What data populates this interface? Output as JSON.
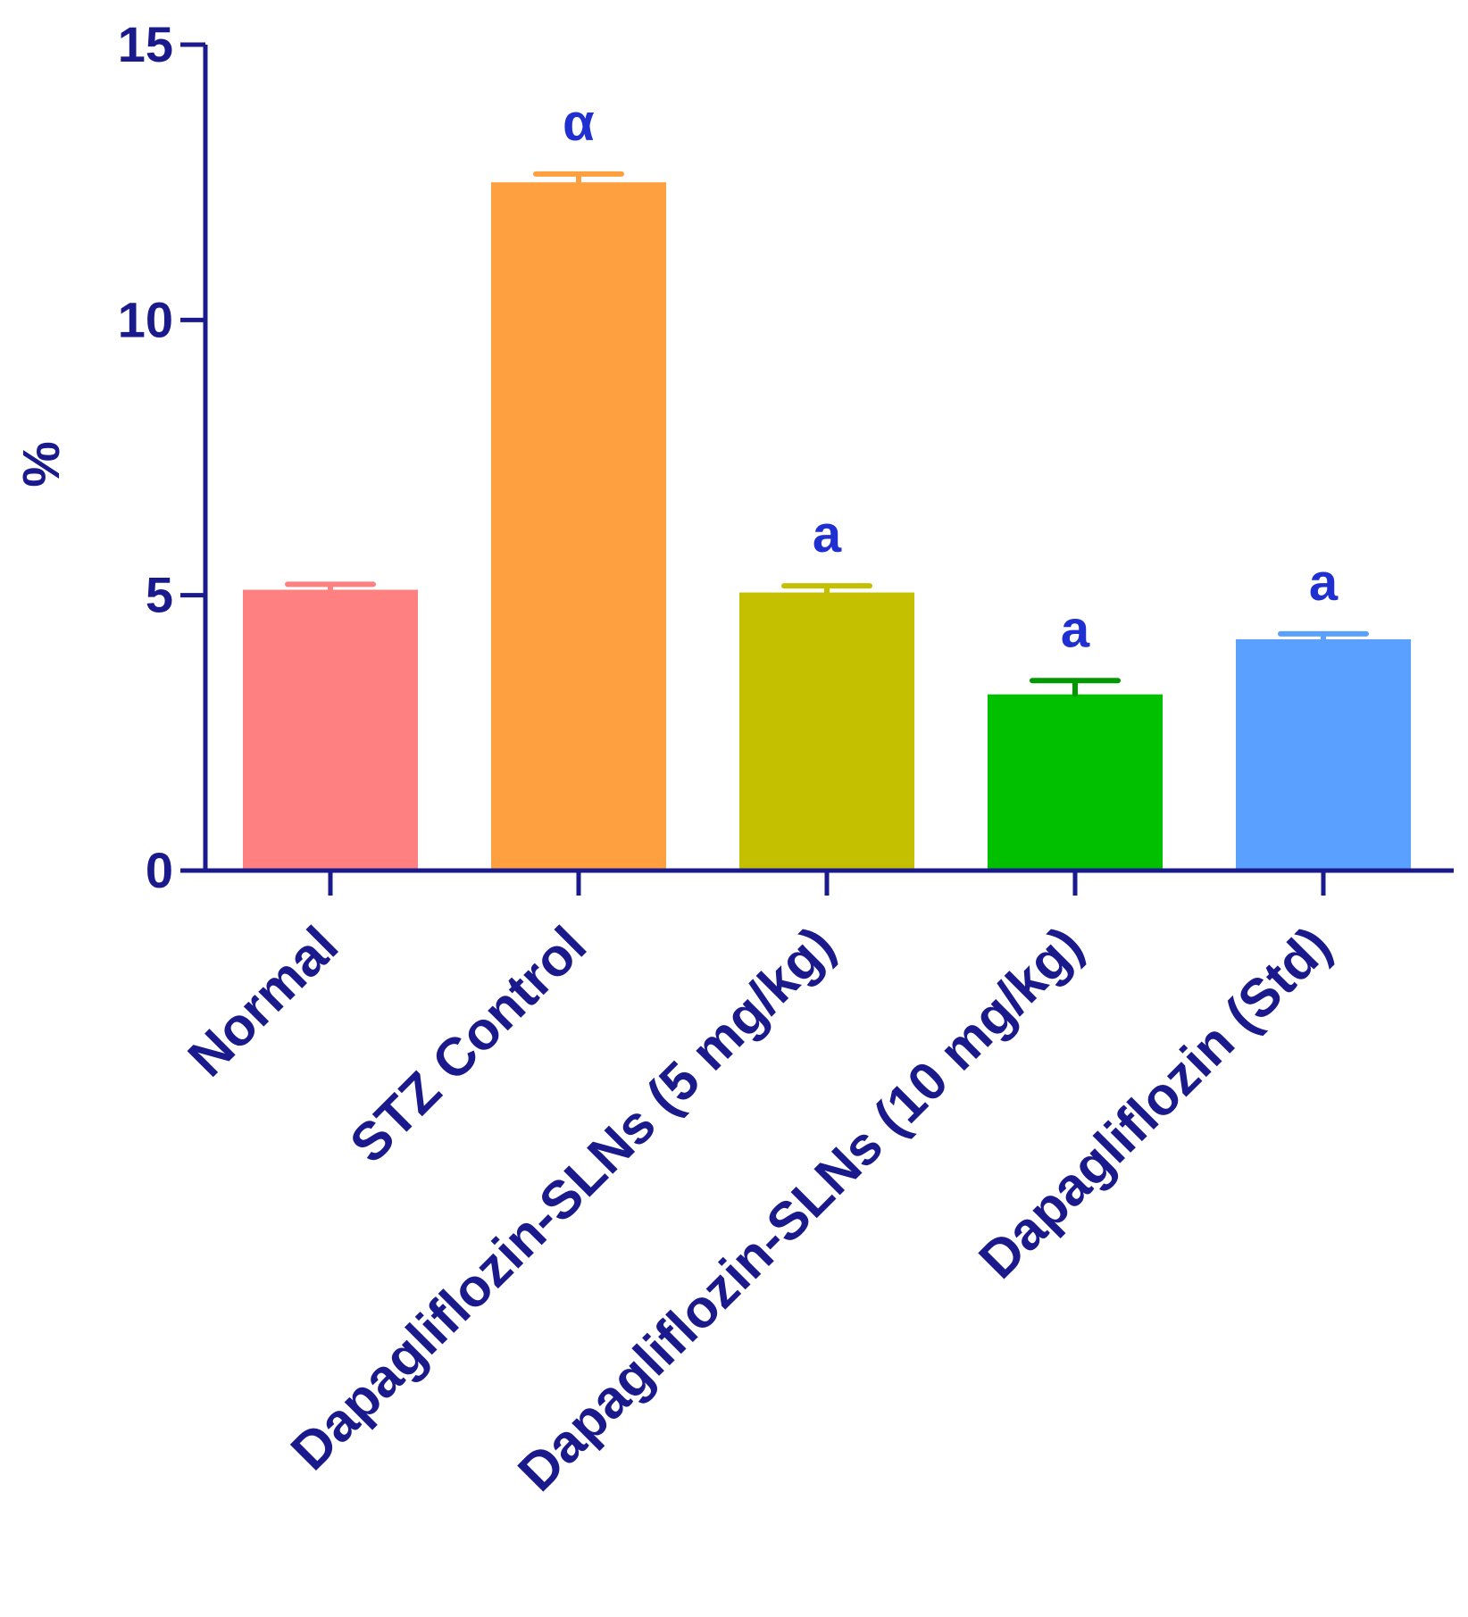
{
  "chart_data": {
    "type": "bar",
    "title": "",
    "xlabel": "",
    "ylabel": "%",
    "ylim": [
      0,
      15
    ],
    "yticks": [
      0,
      5,
      10,
      15
    ],
    "grid": false,
    "categories": [
      "Normal",
      "STZ Control",
      "Dapagliflozin-SLNs (5 mg/kg)",
      "Dapagliflozin-SLNs (10 mg/kg)",
      "Dapagliflozin (Std)"
    ],
    "values": [
      5.1,
      12.5,
      5.05,
      3.2,
      4.2
    ],
    "errors": [
      0.1,
      0.15,
      0.12,
      0.25,
      0.1
    ],
    "colors": [
      "#ff8080",
      "#ffa040",
      "#c4c000",
      "#00c000",
      "#5aa0ff"
    ],
    "annotations": [
      "",
      "α",
      "a",
      "a",
      "a"
    ]
  }
}
